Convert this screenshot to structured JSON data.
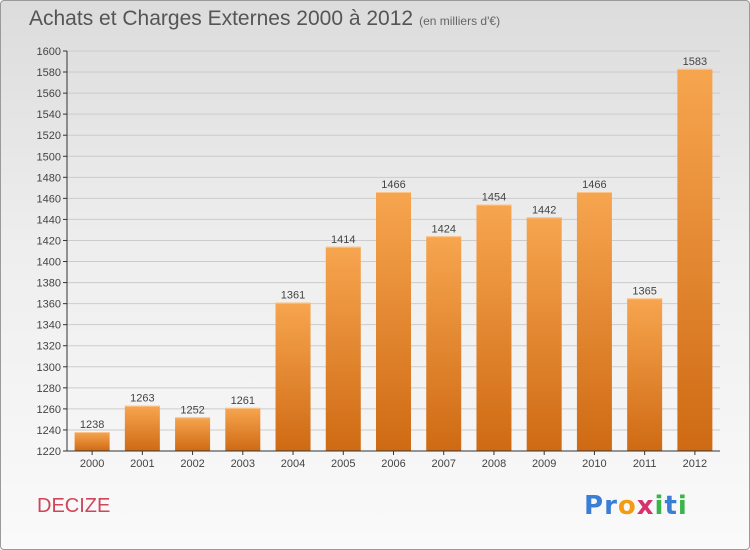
{
  "title": "Achats et Charges Externes 2000 à 2012",
  "subtitle": "(en milliers d'€)",
  "commune": "DECIZE",
  "logo": {
    "text": "Proxiti",
    "letter_colors": [
      "#3a7fd5",
      "#3a7fd5",
      "#f39c12",
      "#d6336c",
      "#3ab54a",
      "#3a7fd5",
      "#3ab54a"
    ]
  },
  "colors": {
    "bar_top": "#f7a54f",
    "bar_bottom": "#cf6a14",
    "label": "#444444",
    "axis": "#333333",
    "grid": "#cccccc"
  },
  "chart_data": {
    "type": "bar",
    "categories": [
      "2000",
      "2001",
      "2002",
      "2003",
      "2004",
      "2005",
      "2006",
      "2007",
      "2008",
      "2009",
      "2010",
      "2011",
      "2012"
    ],
    "values": [
      1238,
      1263,
      1252,
      1261,
      1361,
      1414,
      1466,
      1424,
      1454,
      1442,
      1466,
      1365,
      1583
    ],
    "ylim": [
      1220,
      1600
    ],
    "yticks": [
      1220,
      1240,
      1260,
      1280,
      1300,
      1320,
      1340,
      1360,
      1380,
      1400,
      1420,
      1440,
      1460,
      1480,
      1500,
      1520,
      1540,
      1560,
      1580,
      1600
    ],
    "grid": true,
    "data_labels": true
  }
}
